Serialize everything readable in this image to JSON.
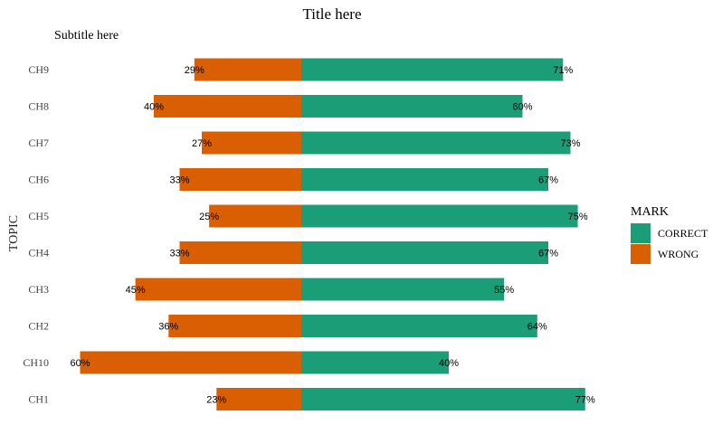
{
  "chart_data": {
    "type": "bar",
    "orientation": "horizontal-diverging",
    "title": "Title here",
    "subtitle": "Subtitle here",
    "ylabel": "TOPIC",
    "xlabel": "",
    "categories": [
      "CH9",
      "CH8",
      "CH7",
      "CH6",
      "CH5",
      "CH4",
      "CH3",
      "CH2",
      "CH10",
      "CH1"
    ],
    "series": [
      {
        "name": "CORRECT",
        "color": "#1b9e77",
        "direction": "right",
        "values": [
          71,
          60,
          73,
          67,
          75,
          67,
          55,
          64,
          40,
          77
        ]
      },
      {
        "name": "WRONG",
        "color": "#d95f02",
        "direction": "left",
        "values": [
          29,
          40,
          27,
          33,
          25,
          33,
          45,
          36,
          60,
          23
        ]
      }
    ],
    "value_suffix": "%",
    "legend": {
      "title": "MARK",
      "position": "right"
    },
    "grid": false
  }
}
